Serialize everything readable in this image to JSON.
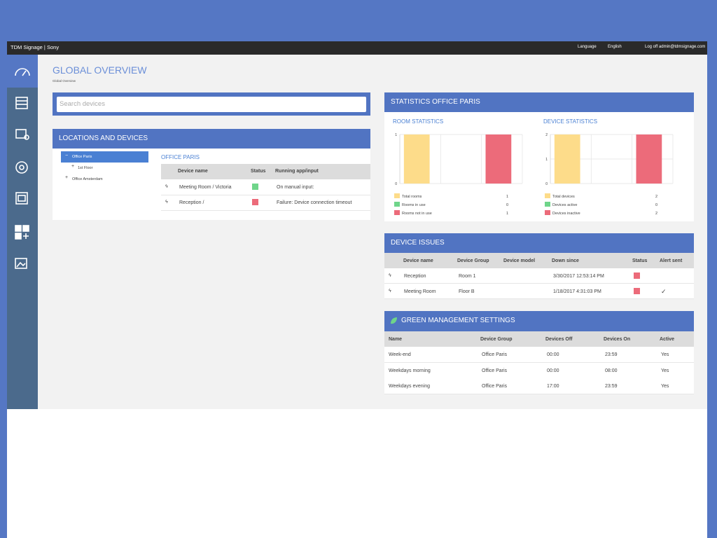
{
  "header": {
    "brand": "TDM Signage | Sony",
    "language_label": "Language",
    "language": "English",
    "logoff": "Log off admin@tdmsignage.com"
  },
  "page": {
    "title": "GLOBAL OVERVIEW",
    "breadcrumb": "Global Overview"
  },
  "search": {
    "placeholder": "Search devices"
  },
  "locations": {
    "title": "LOCATIONS AND DEVICES",
    "tree": [
      "Office Paris",
      "1st Floor",
      "Office Amsterdam"
    ],
    "selected_title": "OFFICE PARIS",
    "columns": [
      "Device name",
      "Status",
      "Running app/input"
    ],
    "rows": [
      {
        "name": "Meeting Room / Victoria",
        "status_color": "#6fd58a",
        "app": "On manual input:"
      },
      {
        "name": "Reception /",
        "status_color": "#ec6b7a",
        "app": "Failure: Device connection timeout"
      }
    ]
  },
  "statistics": {
    "title": "STATISTICS OFFICE PARIS",
    "charts": [
      {
        "type": "bar",
        "title": "ROOM STATISTICS",
        "categories": [
          "Total rooms",
          "Rooms in use",
          "Rooms not in use"
        ],
        "values": [
          1,
          0,
          1
        ],
        "colors": [
          "#fddc8a",
          "#6fd58a",
          "#ec6b7a"
        ],
        "ylim": [
          0,
          1
        ],
        "yticks": [
          0,
          1
        ]
      },
      {
        "type": "bar",
        "title": "DEVICE STATISTICS",
        "categories": [
          "Total devices",
          "Devices active",
          "Devices inactive"
        ],
        "values": [
          2,
          0,
          2
        ],
        "colors": [
          "#fddc8a",
          "#6fd58a",
          "#ec6b7a"
        ],
        "ylim": [
          0,
          2
        ],
        "yticks": [
          0,
          1,
          2
        ]
      }
    ]
  },
  "issues": {
    "title": "DEVICE ISSUES",
    "columns": [
      "Device name",
      "Device Group",
      "Device model",
      "Down since",
      "Status",
      "Alert sent"
    ],
    "rows": [
      {
        "name": "Reception",
        "group": "Room 1",
        "down_since": "3/30/2017 12:53:14 PM",
        "status_color": "#ec6b7a"
      },
      {
        "name": "Meeting Room",
        "group": "Floor B",
        "down_since": "1/18/2017 4:31:03 PM",
        "status_color": "#ec6b7a",
        "alert": "✓"
      }
    ]
  },
  "green": {
    "title": "GREEN MANAGEMENT SETTINGS",
    "columns": [
      "Name",
      "Device Group",
      "Devices Off",
      "Devices On",
      "Active"
    ],
    "rows": [
      [
        "Week-end",
        "Office Paris",
        "00:00",
        "23:59",
        "Yes"
      ],
      [
        "Weekdays morning",
        "Office Paris",
        "00:00",
        "08:00",
        "Yes"
      ],
      [
        "Weekdays evening",
        "Office Paris",
        "17:00",
        "23:59",
        "Yes"
      ]
    ]
  }
}
